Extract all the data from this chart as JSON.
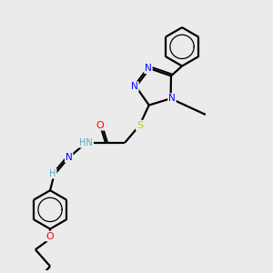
{
  "bg_color": "#ebebeb",
  "atom_colors": {
    "N": "#0000ff",
    "O": "#ff0000",
    "S": "#cccc00",
    "C": "#000000",
    "H": "#4ab0c0"
  },
  "bond_color": "#000000",
  "bond_width": 1.6
}
